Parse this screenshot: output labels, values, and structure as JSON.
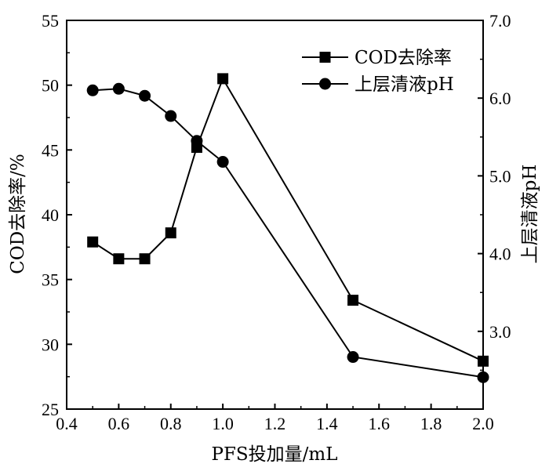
{
  "chart_data": {
    "type": "line",
    "xlabel": "PFS投加量/mL",
    "ylabel_left": "COD去除率/%",
    "ylabel_right": "上层清液pH",
    "xlim": [
      0.4,
      2.0
    ],
    "ylim_left": [
      25,
      55
    ],
    "ylim_right": [
      2.0,
      7.0
    ],
    "x_ticks": [
      "0.4",
      "0.6",
      "0.8",
      "1.0",
      "1.2",
      "1.4",
      "1.6",
      "1.8",
      "2.0"
    ],
    "y_left_ticks": [
      "25",
      "30",
      "35",
      "40",
      "45",
      "50",
      "55"
    ],
    "y_right_ticks": [
      "3.0",
      "4.0",
      "5.0",
      "6.0",
      "7.0"
    ],
    "grid": false,
    "legend_position": "top-right",
    "series": [
      {
        "name": "COD去除率",
        "axis": "left",
        "marker": "square",
        "x": [
          0.5,
          0.6,
          0.7,
          0.8,
          0.9,
          1.0,
          1.5,
          2.0
        ],
        "y": [
          37.9,
          36.6,
          36.6,
          38.6,
          45.2,
          50.5,
          33.4,
          28.7
        ]
      },
      {
        "name": "上层清液pH",
        "axis": "right",
        "marker": "circle",
        "x": [
          0.5,
          0.6,
          0.7,
          0.8,
          0.9,
          1.0,
          1.5,
          2.0
        ],
        "y": [
          6.1,
          6.12,
          6.03,
          5.77,
          5.45,
          5.18,
          2.67,
          2.41
        ]
      }
    ]
  }
}
